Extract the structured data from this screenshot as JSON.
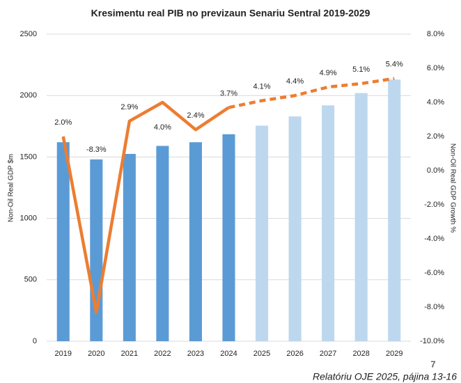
{
  "chart_data": {
    "type": "bar-line",
    "title": "Kresimentu real PIB no previzaun Senariu Sentral 2019-2029",
    "categories": [
      "2019",
      "2020",
      "2021",
      "2022",
      "2023",
      "2024",
      "2025",
      "2026",
      "2027",
      "2028",
      "2029"
    ],
    "y_label": "Non-Oil Real GDP $m",
    "y2_label": "Non-Oil Real GDP Growth %",
    "ylim": [
      0,
      2500
    ],
    "yticks": [
      0,
      500,
      1000,
      1500,
      2000,
      2500
    ],
    "y2lim": [
      -10,
      8
    ],
    "y2ticks": [
      {
        "value": -10,
        "label": "-10.0%"
      },
      {
        "value": -8,
        "label": "-8.0%"
      },
      {
        "value": -6,
        "label": "-6.0%"
      },
      {
        "value": -4,
        "label": "-4.0%"
      },
      {
        "value": -2,
        "label": "-2.0%"
      },
      {
        "value": 0,
        "label": "0.0%"
      },
      {
        "value": 2,
        "label": "2.0%"
      },
      {
        "value": 4,
        "label": "4.0%"
      },
      {
        "value": 6,
        "label": "6.0%"
      },
      {
        "value": 8,
        "label": "8.0%"
      }
    ],
    "grid": true,
    "series": [
      {
        "type": "bar",
        "values": [
          1620,
          1480,
          1525,
          1590,
          1620,
          1685,
          1755,
          1830,
          1920,
          2020,
          2130
        ],
        "colors": [
          "#5b9bd5",
          "#5b9bd5",
          "#5b9bd5",
          "#5b9bd5",
          "#5b9bd5",
          "#5b9bd5",
          "#bdd7ee",
          "#bdd7ee",
          "#bdd7ee",
          "#bdd7ee",
          "#bdd7ee"
        ]
      },
      {
        "type": "line",
        "axis": "y2",
        "color": "#ed7d31",
        "dash_from_index": 5,
        "values": [
          2.0,
          -8.3,
          2.9,
          4.0,
          2.4,
          3.7,
          4.1,
          4.4,
          4.9,
          5.1,
          5.4
        ],
        "value_labels": [
          "2.0%",
          "-8.3%",
          "2.9%",
          "4.0%",
          "2.4%",
          "3.7%",
          "4.1%",
          "4.4%",
          "4.9%",
          "5.1%",
          "5.4%"
        ]
      }
    ]
  },
  "page_number": "7",
  "footer": "Relatóriu OJE 2025, pájina 13-16"
}
